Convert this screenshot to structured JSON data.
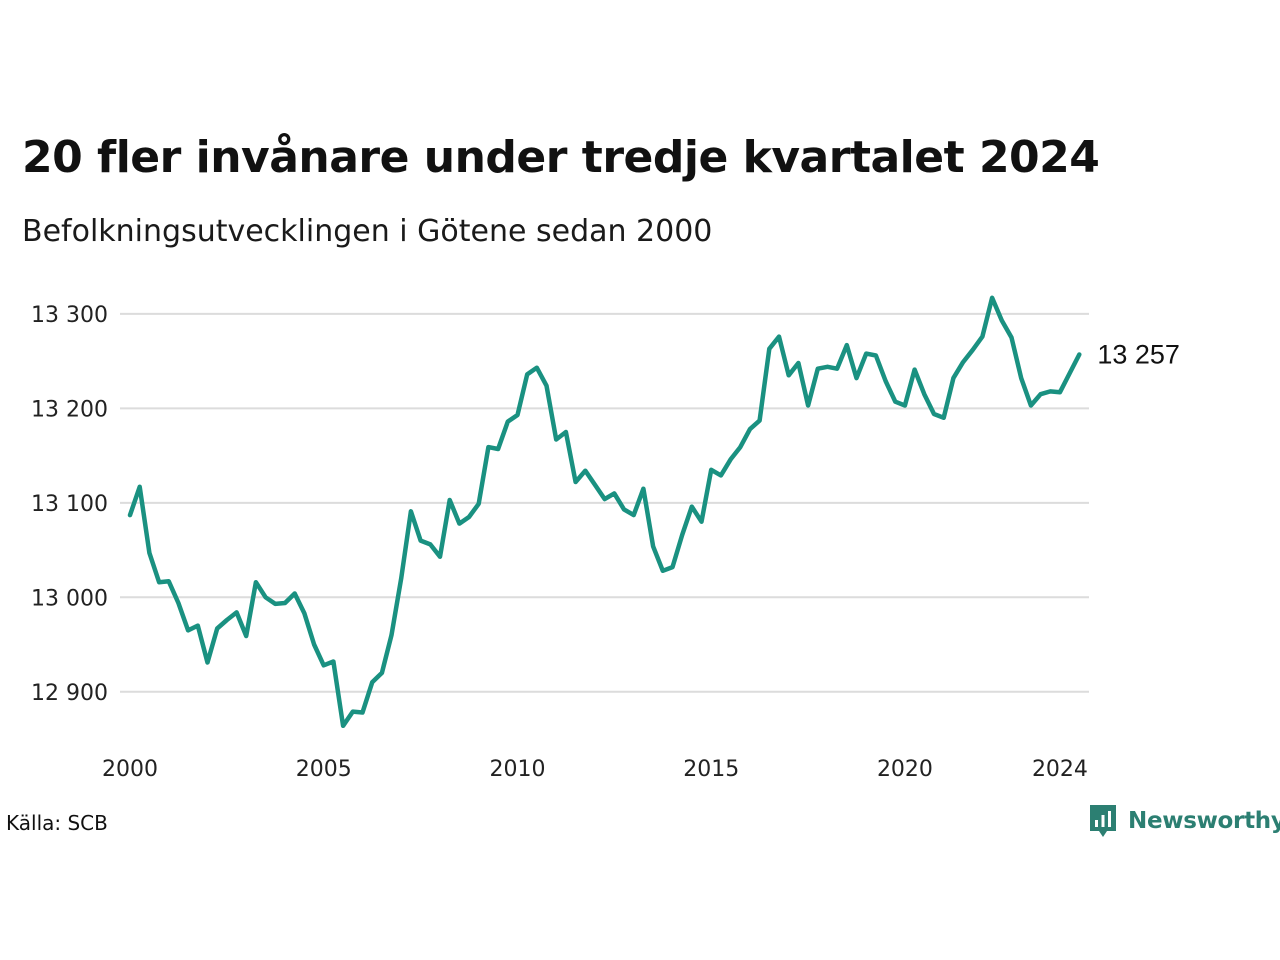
{
  "header": {
    "title": "20 fler invånare under tredje kvartalet 2024",
    "subtitle": "Befolkningsutvecklingen i Götene sedan 2000"
  },
  "footer": {
    "source": "Källa: SCB",
    "brand": "Newsworthy"
  },
  "colors": {
    "line": "#1a9181",
    "grid": "#dcdcdc",
    "brand": "#2c7f72"
  },
  "chart_data": {
    "type": "line",
    "title": "20 fler invånare under tredje kvartalet 2024",
    "subtitle": "Befolkningsutvecklingen i Götene sedan 2000",
    "xlabel": "",
    "ylabel": "",
    "ylim": [
      12850,
      13320
    ],
    "xlim": [
      2000,
      2024.75
    ],
    "grid": true,
    "x_ticks": [
      2000,
      2005,
      2010,
      2015,
      2020,
      2024
    ],
    "x_tick_labels": [
      "2000",
      "2005",
      "2010",
      "2015",
      "2020",
      "2024"
    ],
    "y_ticks": [
      12900,
      13000,
      13100,
      13200,
      13300
    ],
    "y_tick_labels": [
      "12 900",
      "13 000",
      "13 100",
      "13 200",
      "13 300"
    ],
    "end_label": "13 257",
    "series": [
      {
        "x_start": 2000.0,
        "x_step": 0.25,
        "values": [
          13087,
          13117,
          13047,
          13016,
          13017,
          12994,
          12965,
          12970,
          12931,
          12967,
          12976,
          12984,
          12959,
          13016,
          13000,
          12993,
          12994,
          13004,
          12983,
          12950,
          12928,
          12932,
          12864,
          12879,
          12878,
          12910,
          12920,
          12960,
          13020,
          13091,
          13060,
          13056,
          13043,
          13103,
          13078,
          13085,
          13099,
          13159,
          13157,
          13186,
          13193,
          13236,
          13243,
          13224,
          13167,
          13175,
          13122,
          13134,
          13119,
          13104,
          13110,
          13093,
          13087,
          13115,
          13054,
          13028,
          13032,
          13066,
          13096,
          13080,
          13135,
          13129,
          13146,
          13159,
          13178,
          13187,
          13263,
          13276,
          13235,
          13248,
          13203,
          13242,
          13244,
          13242,
          13267,
          13232,
          13258,
          13256,
          13229,
          13207,
          13203,
          13241,
          13215,
          13194,
          13190,
          13232,
          13249,
          13262,
          13276,
          13317,
          13293,
          13275,
          13232,
          13203,
          13215,
          13218,
          13217,
          13237,
          13257
        ]
      }
    ]
  }
}
